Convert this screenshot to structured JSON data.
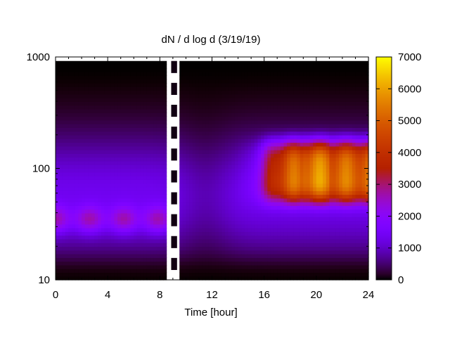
{
  "chart_data": {
    "type": "heatmap",
    "title": "dN / d log d (3/19/19)",
    "xlabel": "Time [hour]",
    "ylabel": "",
    "xlim": [
      0,
      24
    ],
    "ylim": [
      10,
      1000
    ],
    "y_scale": "log",
    "x_ticks": [
      "0",
      "4",
      "8",
      "12",
      "16",
      "20",
      "24"
    ],
    "y_ticks": [
      "10",
      "100",
      "1000"
    ],
    "colorbar": {
      "range": [
        0,
        7000
      ],
      "ticks": [
        "0",
        "1000",
        "2000",
        "3000",
        "4000",
        "5000",
        "6000",
        "7000"
      ],
      "colormap": "gnuplot",
      "colors": [
        "#000000",
        "#550094",
        "#8000ff",
        "#9d3cc8",
        "#b65400",
        "#c87400",
        "#e2b800",
        "#ffff00"
      ]
    },
    "modes": [
      {
        "hours": [
          0,
          8.5
        ],
        "peak_diameter": 35,
        "peak_value": 3000
      },
      {
        "hours": [
          15.5,
          24
        ],
        "peak_diameter": 95,
        "peak_value": 5500
      }
    ],
    "missing_data_hours": [
      8.6,
      9.5
    ],
    "grid": false
  }
}
